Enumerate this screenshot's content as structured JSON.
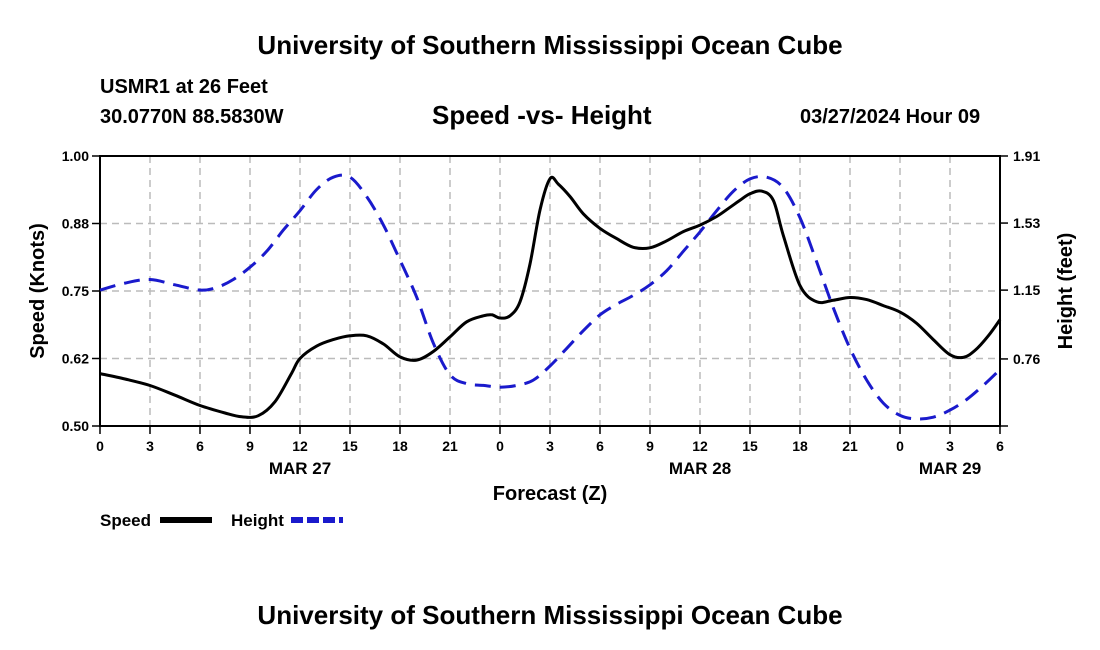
{
  "header": {
    "title": "University of Southern Mississippi Ocean Cube",
    "station": "USMR1 at 26 Feet",
    "coords": "30.0770N  88.5830W",
    "chart_title": "Speed -vs- Height",
    "run_time": "03/27/2024 Hour 09"
  },
  "footer": {
    "title": "University of Southern Mississippi Ocean Cube"
  },
  "colors": {
    "speed": "#000000",
    "height": "#1a1acc",
    "grid": "#bbbbbb"
  },
  "chart_data": {
    "type": "line",
    "title": "Speed -vs- Height",
    "xlabel": "Forecast (Z)",
    "ylabel": "Speed (Knots)",
    "y2label": "Height (feet)",
    "x_range": [
      0,
      54
    ],
    "x_ticks": [
      0,
      3,
      6,
      9,
      12,
      15,
      18,
      21,
      24,
      27,
      30,
      33,
      36,
      39,
      42,
      45,
      48,
      51,
      54
    ],
    "x_tick_labels": [
      "0",
      "3",
      "6",
      "9",
      "12",
      "15",
      "18",
      "21",
      "0",
      "3",
      "6",
      "9",
      "12",
      "15",
      "18",
      "21",
      "0",
      "3",
      "6"
    ],
    "date_labels": [
      {
        "label": "MAR 27",
        "x": 12
      },
      {
        "label": "MAR 28",
        "x": 36
      },
      {
        "label": "MAR 29",
        "x": 51
      }
    ],
    "ylim": [
      0.5,
      1.0
    ],
    "y_ticks": [
      0.5,
      0.625,
      0.75,
      0.875,
      1.0
    ],
    "y_tick_labels": [
      "0.50",
      "0.62",
      "0.75",
      "0.88",
      "1.00"
    ],
    "y2lim": [
      0.38,
      1.91
    ],
    "y2_ticks": [
      0.38,
      0.76,
      1.15,
      1.53,
      1.91
    ],
    "y2_tick_labels": [
      "",
      "0.76",
      "1.15",
      "1.53",
      "1.91"
    ],
    "grid": true,
    "legend_position": "bottom-left",
    "series": [
      {
        "name": "Speed",
        "axis": "left",
        "style": "solid",
        "x": [
          0,
          1.5,
          3,
          4.5,
          6,
          7.5,
          8.5,
          9.5,
          10.5,
          11.5,
          12,
          13,
          14,
          15,
          16,
          17,
          18,
          19,
          20,
          21,
          22,
          23,
          23.5,
          24,
          24.6,
          25.2,
          25.8,
          26.4,
          27,
          27.5,
          28.2,
          29,
          30,
          31,
          32,
          33,
          34,
          35,
          36,
          37,
          37.8,
          38.4,
          39,
          39.7,
          40.4,
          41,
          42,
          43,
          44,
          45,
          46,
          47,
          48,
          49,
          50,
          51,
          51.8,
          52.5,
          53.3,
          54
        ],
        "values": [
          0.597,
          0.587,
          0.575,
          0.557,
          0.538,
          0.524,
          0.517,
          0.519,
          0.545,
          0.598,
          0.625,
          0.648,
          0.66,
          0.667,
          0.667,
          0.652,
          0.628,
          0.622,
          0.638,
          0.665,
          0.693,
          0.704,
          0.706,
          0.7,
          0.704,
          0.73,
          0.8,
          0.9,
          0.958,
          0.948,
          0.925,
          0.893,
          0.866,
          0.847,
          0.831,
          0.83,
          0.843,
          0.86,
          0.872,
          0.888,
          0.905,
          0.918,
          0.93,
          0.935,
          0.918,
          0.853,
          0.76,
          0.73,
          0.733,
          0.738,
          0.734,
          0.723,
          0.711,
          0.69,
          0.66,
          0.632,
          0.627,
          0.64,
          0.667,
          0.697
        ]
      },
      {
        "name": "Height",
        "axis": "right",
        "style": "dashed",
        "x": [
          0,
          1.5,
          3,
          4.5,
          6,
          7,
          8,
          9,
          10,
          11,
          12,
          13,
          14,
          15,
          16,
          17,
          18,
          19,
          20,
          21,
          22,
          23,
          24,
          25,
          26,
          27,
          28,
          29,
          30,
          31,
          32,
          33,
          34,
          35,
          36,
          37,
          38,
          39,
          40,
          41,
          42,
          43,
          44,
          45,
          46,
          47,
          48,
          49,
          50,
          51,
          52,
          53,
          54
        ],
        "values": [
          1.15,
          1.19,
          1.21,
          1.18,
          1.15,
          1.165,
          1.21,
          1.28,
          1.37,
          1.49,
          1.6,
          1.72,
          1.79,
          1.79,
          1.68,
          1.52,
          1.32,
          1.11,
          0.85,
          0.67,
          0.62,
          0.61,
          0.6,
          0.61,
          0.64,
          0.72,
          0.82,
          0.92,
          1.01,
          1.07,
          1.12,
          1.18,
          1.26,
          1.37,
          1.48,
          1.6,
          1.71,
          1.78,
          1.79,
          1.73,
          1.56,
          1.31,
          1.05,
          0.82,
          0.64,
          0.51,
          0.44,
          0.42,
          0.43,
          0.47,
          0.53,
          0.61,
          0.7
        ]
      }
    ]
  }
}
